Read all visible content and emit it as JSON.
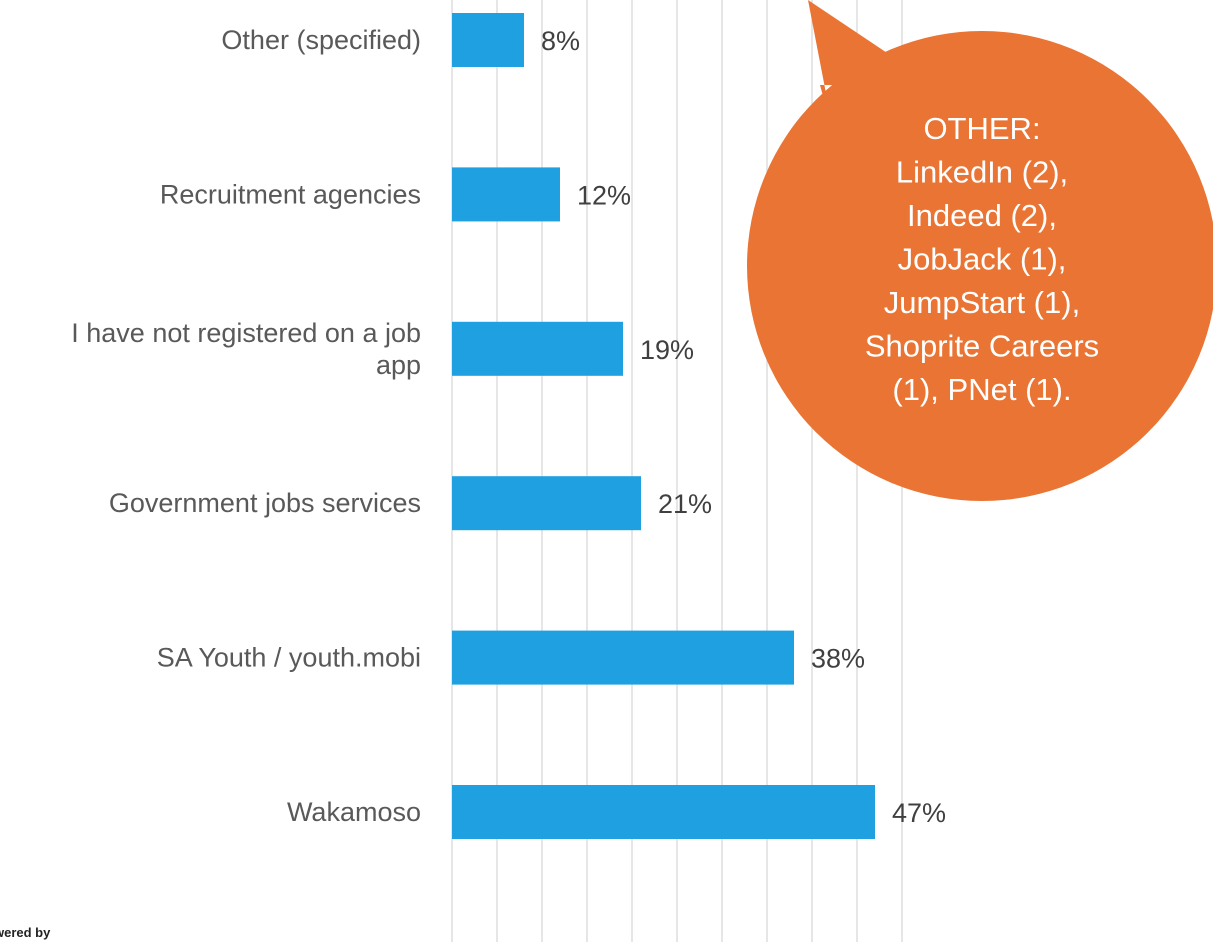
{
  "chart_data": {
    "type": "bar",
    "orientation": "horizontal",
    "categories": [
      [
        "Wakamoso"
      ],
      [
        "SA Youth / youth.mobi"
      ],
      [
        "Government jobs services"
      ],
      [
        "I have not registered on a job",
        "app"
      ],
      [
        "Recruitment agencies"
      ],
      [
        "Other (specified)"
      ]
    ],
    "values": [
      47,
      38,
      21,
      19,
      12,
      8
    ],
    "value_labels": [
      "47%",
      "38%",
      "21%",
      "19%",
      "12%",
      "8%"
    ],
    "unit": "%",
    "xlim": [
      0,
      50
    ],
    "gridlines": "vertical",
    "axis_labels_visible": false,
    "bar_color": "#1fa0e0"
  },
  "callout": {
    "lines": [
      "OTHER:",
      "LinkedIn (2),",
      "Indeed (2),",
      "JobJack (1),",
      "JumpStart (1),",
      "Shoprite Careers",
      "(1), PNet (1)."
    ],
    "color": "#e97434",
    "text_color": "#ffffff"
  },
  "footer": {
    "text": "wered by"
  }
}
